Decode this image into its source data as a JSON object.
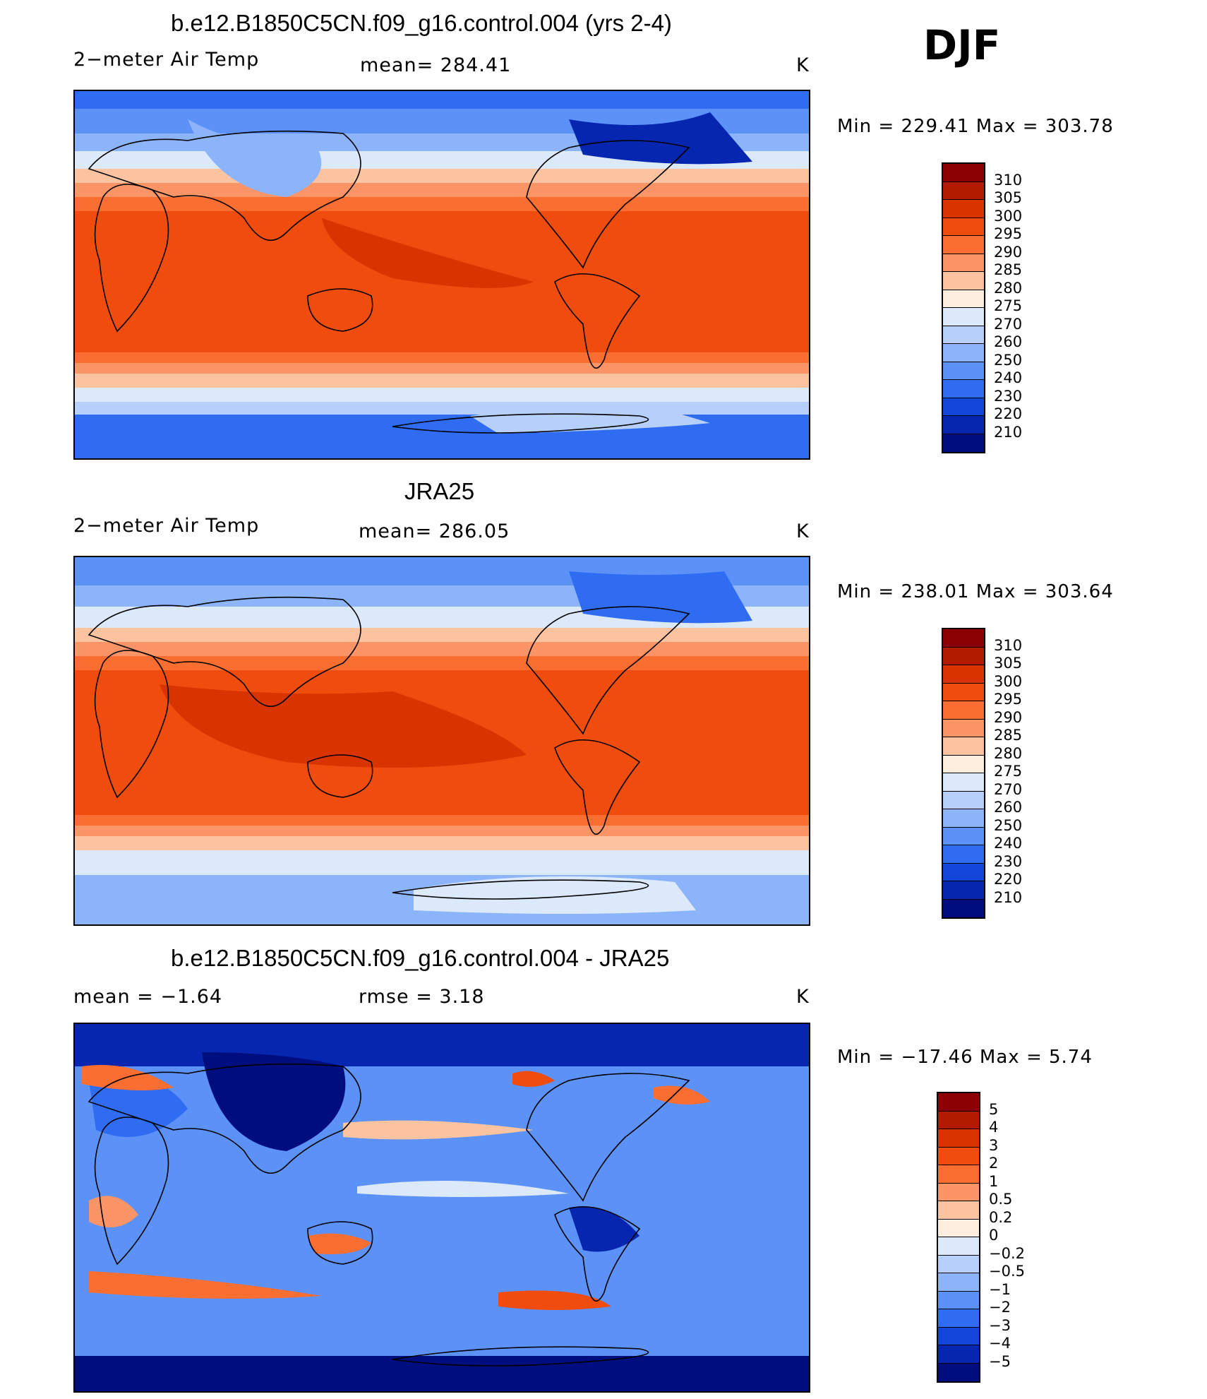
{
  "season": "DJF",
  "panels": [
    {
      "title": "b.e12.B1850C5CN.f09_g16.control.004 (yrs 2-4)",
      "left_label": "2−meter Air Temp",
      "mid_label": "mean=  284.41",
      "units": "K",
      "minmax": "Min  =  229.41  Max  =  303.78",
      "kind": "model"
    },
    {
      "title": "JRA25",
      "left_label": "2−meter Air Temp",
      "mid_label": "mean=  286.05",
      "units": "K",
      "minmax": "Min  =  238.01  Max  =  303.64",
      "kind": "obs"
    },
    {
      "title": "b.e12.B1850C5CN.f09_g16.control.004 - JRA25",
      "left_label": "mean  =    −1.64",
      "mid_label": "rmse  =      3.18",
      "units": "K",
      "minmax": "Min  =  −17.46  Max  =      5.74",
      "kind": "diff"
    }
  ],
  "colorbars": {
    "temp": {
      "labels": [
        "310",
        "305",
        "300",
        "295",
        "290",
        "285",
        "280",
        "275",
        "270",
        "260",
        "250",
        "240",
        "230",
        "220",
        "210"
      ],
      "colors": [
        "#8b0000",
        "#b31b00",
        "#d93300",
        "#f04c0e",
        "#fa6e32",
        "#fb9567",
        "#fcc3a0",
        "#feeede",
        "#dbe9fb",
        "#b6d0fb",
        "#8cb4fb",
        "#5c92f8",
        "#2f6cf2",
        "#1245d8",
        "#0626b0",
        "#000d7e"
      ]
    },
    "diff": {
      "labels": [
        "5",
        "4",
        "3",
        "2",
        "1",
        "0.5",
        "0.2",
        "0",
        "−0.2",
        "−0.5",
        "−1",
        "−2",
        "−3",
        "−4",
        "−5"
      ],
      "colors": [
        "#8b0000",
        "#b31b00",
        "#d93300",
        "#f04c0e",
        "#fa6e32",
        "#fb9567",
        "#fcc3a0",
        "#feeede",
        "#dbe9fb",
        "#b6d0fb",
        "#8cb4fb",
        "#5c92f8",
        "#2f6cf2",
        "#1245d8",
        "#0626b0",
        "#000d7e"
      ]
    }
  }
}
